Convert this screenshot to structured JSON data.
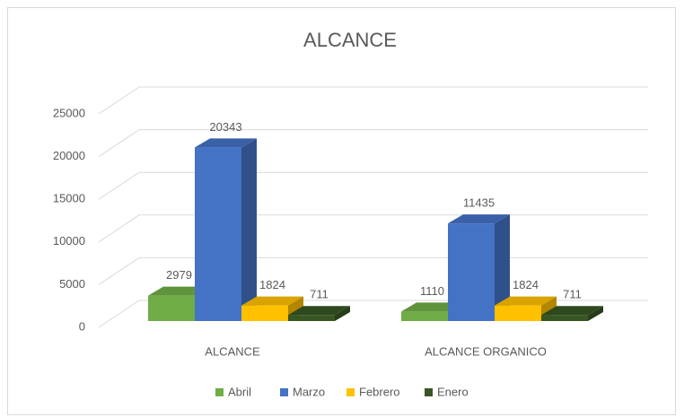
{
  "chart_data": {
    "type": "bar3d",
    "title": "ALCANCE",
    "categories": [
      "ALCANCE",
      "ALCANCE ORGANICO"
    ],
    "series": [
      {
        "name": "Abril",
        "color": "#70ad47",
        "values": [
          2979,
          1110
        ]
      },
      {
        "name": "Marzo",
        "color": "#4472c4",
        "values": [
          20343,
          11435
        ]
      },
      {
        "name": "Febrero",
        "color": "#ffc000",
        "values": [
          1824,
          1824
        ]
      },
      {
        "name": "Enero",
        "color": "#375623",
        "values": [
          711,
          711
        ]
      }
    ],
    "ylim": [
      0,
      25000
    ],
    "yticks": [
      0,
      5000,
      10000,
      15000,
      20000,
      25000
    ],
    "grid": true,
    "legend": "bottom"
  }
}
